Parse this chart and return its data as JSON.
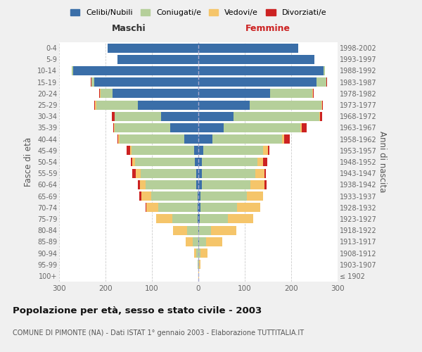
{
  "age_groups": [
    "100+",
    "95-99",
    "90-94",
    "85-89",
    "80-84",
    "75-79",
    "70-74",
    "65-69",
    "60-64",
    "55-59",
    "50-54",
    "45-49",
    "40-44",
    "35-39",
    "30-34",
    "25-29",
    "20-24",
    "15-19",
    "10-14",
    "5-9",
    "0-4"
  ],
  "birth_years": [
    "≤ 1902",
    "1903-1907",
    "1908-1912",
    "1913-1917",
    "1918-1922",
    "1923-1927",
    "1928-1932",
    "1933-1937",
    "1938-1942",
    "1943-1947",
    "1948-1952",
    "1953-1957",
    "1958-1962",
    "1963-1967",
    "1968-1972",
    "1973-1977",
    "1978-1982",
    "1983-1987",
    "1988-1992",
    "1993-1997",
    "1998-2002"
  ],
  "male_celibe": [
    0,
    0,
    0,
    0,
    0,
    1,
    2,
    2,
    4,
    5,
    7,
    9,
    30,
    60,
    80,
    130,
    185,
    225,
    270,
    175,
    195
  ],
  "male_coniugato": [
    0,
    1,
    4,
    12,
    25,
    55,
    85,
    100,
    110,
    120,
    130,
    135,
    140,
    120,
    100,
    90,
    25,
    5,
    2,
    0,
    0
  ],
  "male_vedovo": [
    0,
    1,
    5,
    15,
    30,
    35,
    25,
    20,
    12,
    10,
    5,
    3,
    2,
    2,
    1,
    2,
    2,
    1,
    0,
    0,
    0
  ],
  "male_divorziato": [
    0,
    0,
    0,
    0,
    0,
    0,
    2,
    5,
    5,
    8,
    3,
    8,
    3,
    2,
    5,
    3,
    2,
    1,
    0,
    0,
    0
  ],
  "female_celibe": [
    0,
    0,
    0,
    1,
    2,
    3,
    4,
    5,
    7,
    8,
    8,
    10,
    30,
    55,
    75,
    110,
    155,
    255,
    270,
    250,
    215
  ],
  "female_coniugato": [
    0,
    1,
    5,
    15,
    25,
    60,
    80,
    100,
    105,
    115,
    120,
    130,
    150,
    165,
    185,
    155,
    90,
    20,
    3,
    0,
    0
  ],
  "female_vedovo": [
    1,
    3,
    15,
    35,
    55,
    55,
    50,
    35,
    30,
    20,
    12,
    10,
    5,
    3,
    2,
    1,
    2,
    1,
    0,
    0,
    0
  ],
  "female_divorziato": [
    0,
    0,
    0,
    0,
    0,
    0,
    0,
    0,
    5,
    2,
    8,
    3,
    12,
    10,
    5,
    2,
    2,
    1,
    0,
    0,
    0
  ],
  "colors": {
    "celibe": "#3a6ea8",
    "coniugato": "#b5cf9a",
    "vedovo": "#f5c56a",
    "divorziato": "#cc2222"
  },
  "title": "Popolazione per età, sesso e stato civile - 2003",
  "subtitle": "COMUNE DI PIMONTE (NA) - Dati ISTAT 1° gennaio 2003 - Elaborazione TUTTITALIA.IT",
  "xlabel_left": "Maschi",
  "xlabel_right": "Femmine",
  "ylabel_left": "Fasce di età",
  "ylabel_right": "Anni di nascita",
  "xlim": 300,
  "bg_color": "#f0f0f0",
  "plot_bg": "#ffffff",
  "grid_color": "#cccccc"
}
